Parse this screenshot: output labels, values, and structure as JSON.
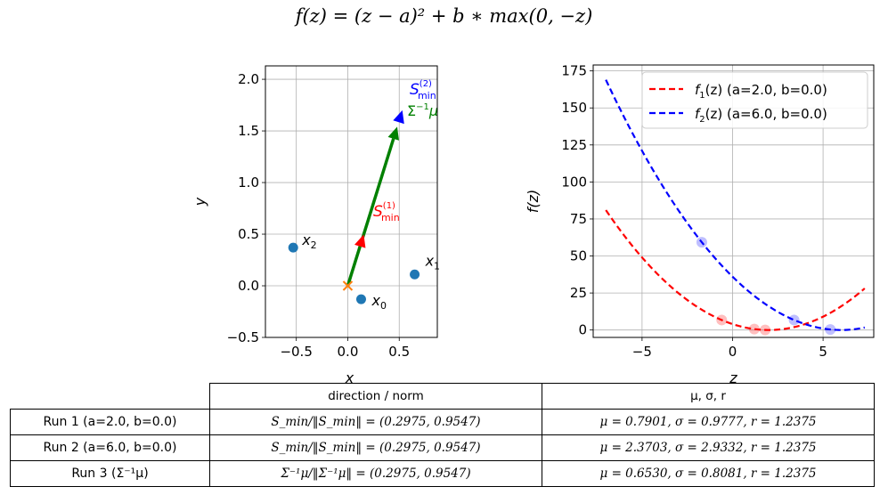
{
  "figure": {
    "suptitle": "f(z) = (z − a)² + b ∗ max(0, −z)"
  },
  "chart_data": [
    {
      "type": "scatter",
      "panel": "left",
      "title": "",
      "xlabel": "x",
      "ylabel": "y",
      "xlim": [
        -0.8,
        0.87
      ],
      "ylim": [
        -0.5,
        2.13
      ],
      "xticks": [
        -0.5,
        0.0,
        0.5
      ],
      "yticks": [
        -0.5,
        0.0,
        0.5,
        1.0,
        1.5,
        2.0
      ],
      "xtick_labels": [
        "−0.5",
        "0.0",
        "0.5"
      ],
      "ytick_labels": [
        "−0.5",
        "0.0",
        "0.5",
        "1.0",
        "1.5",
        "2.0"
      ],
      "grid": true,
      "points": [
        {
          "name": "x_0",
          "label": "x",
          "sub": "0",
          "x": 0.13,
          "y": -0.13,
          "color": "#1f77b4"
        },
        {
          "name": "x_1",
          "label": "x",
          "sub": "1",
          "x": 0.65,
          "y": 0.11,
          "color": "#1f77b4"
        },
        {
          "name": "x_2",
          "label": "x",
          "sub": "2",
          "x": -0.53,
          "y": 0.37,
          "color": "#1f77b4"
        }
      ],
      "origin_marker": {
        "x": 0.0,
        "y": 0.0,
        "marker": "x",
        "color": "#ff7f0e"
      },
      "arrows": [
        {
          "name": "S_min(1)",
          "label": "S",
          "sub": "min",
          "sup": "(1)",
          "x_end": 0.155,
          "y_end": 0.497,
          "color": "#ff0000"
        },
        {
          "name": "S_min(2)",
          "label": "S",
          "sub": "min",
          "sup": "(2)",
          "x_end": 0.53,
          "y_end": 1.7,
          "color": "#0000ff"
        },
        {
          "name": "Sigma^-1 mu",
          "label": "Σ",
          "sup": "−1",
          "tail": "μ",
          "x_end": 0.48,
          "y_end": 1.54,
          "color": "#008000"
        }
      ]
    },
    {
      "type": "line",
      "panel": "right",
      "title": "",
      "xlabel": "z",
      "ylabel": "f(z)",
      "xlim": [
        -7.7,
        7.8
      ],
      "ylim": [
        -5,
        179
      ],
      "xticks": [
        -5,
        0,
        5
      ],
      "yticks": [
        0,
        25,
        50,
        75,
        100,
        125,
        150,
        175
      ],
      "xtick_labels": [
        "−5",
        "0",
        "5"
      ],
      "ytick_labels": [
        "0",
        "25",
        "50",
        "75",
        "100",
        "125",
        "150",
        "175"
      ],
      "grid": true,
      "legend_position": "top-right",
      "z_range": [
        -7.0,
        7.3
      ],
      "series": [
        {
          "name": "f_1",
          "legend": "f",
          "legend_sub": "1",
          "legend_rest": "(z) (a=2.0, b=0.0)",
          "a": 2.0,
          "b": 0.0,
          "color": "#ff0000",
          "linestyle": "dashed",
          "markers": [
            {
              "z": -0.6,
              "f": 6.76
            },
            {
              "z": 1.2,
              "f": 0.64
            },
            {
              "z": 1.8,
              "f": 0.04
            }
          ]
        },
        {
          "name": "f_2",
          "legend": "f",
          "legend_sub": "2",
          "legend_rest": "(z) (a=6.0, b=0.0)",
          "a": 6.0,
          "b": 0.0,
          "color": "#0000ff",
          "linestyle": "dashed",
          "markers": [
            {
              "z": -1.7,
              "f": 59.29
            },
            {
              "z": 3.4,
              "f": 6.76
            },
            {
              "z": 5.4,
              "f": 0.36
            }
          ]
        }
      ]
    }
  ],
  "table": {
    "header": [
      "",
      "direction / norm",
      "μ,  σ,  r"
    ],
    "rows": [
      {
        "label": "Run 1  (a=2.0, b=0.0)",
        "direction": "S_min/‖S_min‖ = (0.2975, 0.9547)",
        "stats": "μ = 0.7901,  σ = 0.9777,  r = 1.2375"
      },
      {
        "label": "Run 2  (a=6.0, b=0.0)",
        "direction": "S_min/‖S_min‖ = (0.2975, 0.9547)",
        "stats": "μ = 2.3703,  σ = 2.9332,  r = 1.2375"
      },
      {
        "label": "Run 3  (Σ⁻¹μ)",
        "direction": "Σ⁻¹μ/‖Σ⁻¹μ‖ = (0.2975, 0.9547)",
        "stats": "μ = 0.6530,  σ = 0.8081,  r = 1.2375"
      }
    ]
  }
}
